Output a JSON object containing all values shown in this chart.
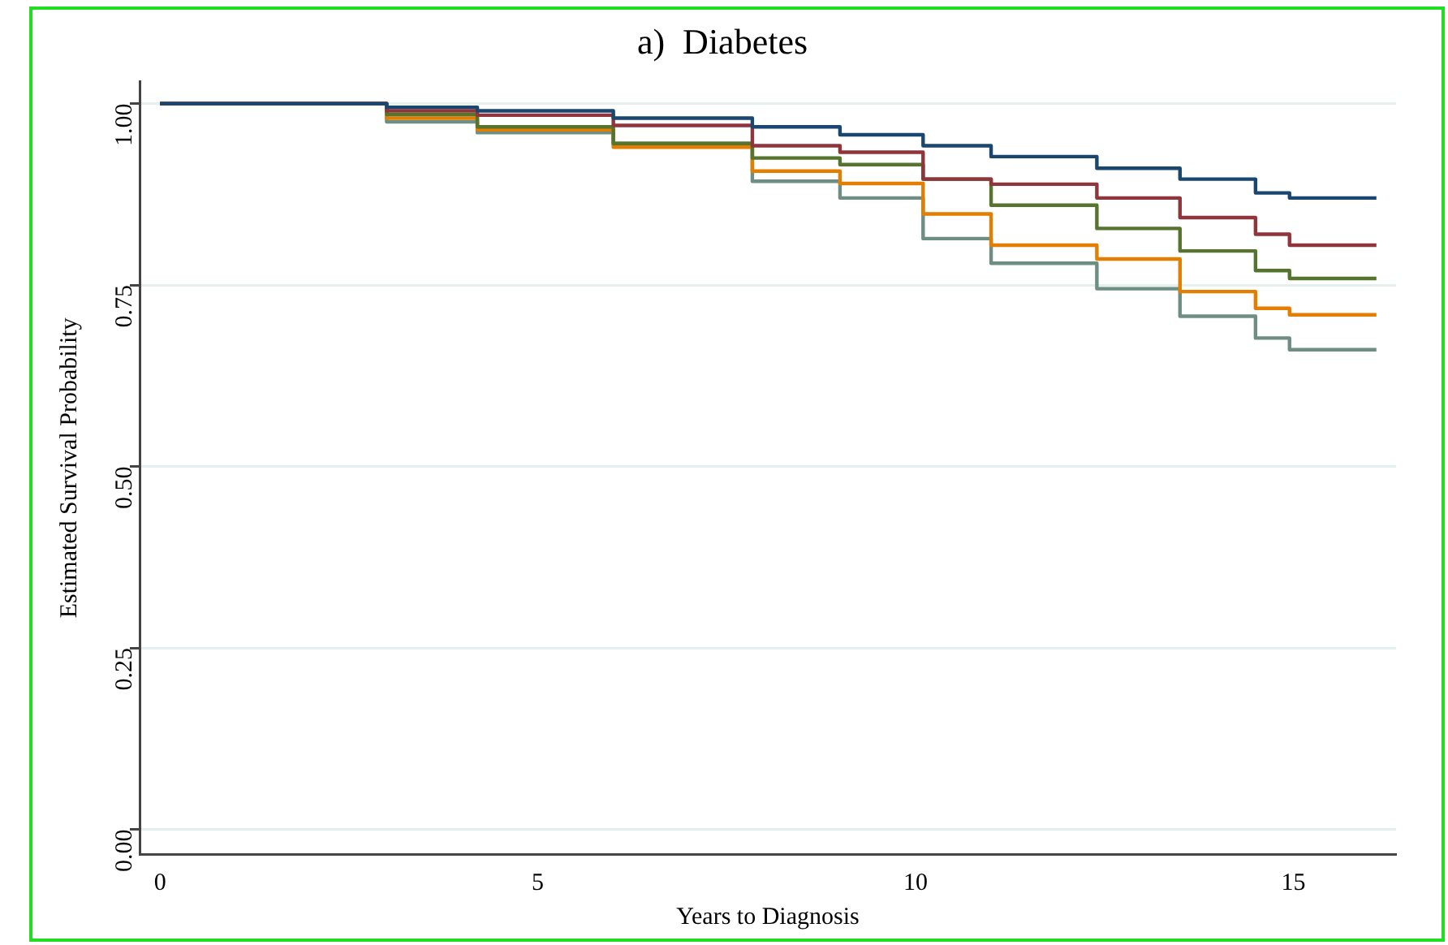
{
  "chart_data": {
    "type": "step",
    "title": "a)  Diabetes",
    "xlabel": "Years to Diagnosis",
    "ylabel": "Estimated Survival Probability",
    "x": [
      0,
      2.1,
      3,
      4.2,
      6,
      7.84,
      9,
      10.1,
      11,
      12.4,
      13.5,
      14.5,
      14.95,
      16.1
    ],
    "series": [
      {
        "color": "#1a476f",
        "values": [
          1,
          1,
          0.995,
          0.99,
          0.98,
          0.968,
          0.957,
          0.942,
          0.927,
          0.911,
          0.896,
          0.877,
          0.87,
          0.87
        ]
      },
      {
        "color": "#90353b",
        "values": [
          1,
          1,
          0.99,
          0.984,
          0.97,
          0.942,
          0.933,
          0.896,
          0.889,
          0.87,
          0.843,
          0.82,
          0.805,
          0.805
        ]
      },
      {
        "color": "#55752f",
        "values": [
          1,
          1,
          0.985,
          0.968,
          0.945,
          0.925,
          0.916,
          0.896,
          0.86,
          0.828,
          0.797,
          0.77,
          0.759,
          0.759
        ]
      },
      {
        "color": "#e37e00",
        "values": [
          1,
          1,
          0.98,
          0.964,
          0.94,
          0.907,
          0.89,
          0.848,
          0.805,
          0.786,
          0.741,
          0.718,
          0.709,
          0.709
        ]
      },
      {
        "color": "#6e8e84",
        "values": [
          1,
          1,
          0.975,
          0.96,
          0.945,
          0.893,
          0.87,
          0.814,
          0.78,
          0.745,
          0.707,
          0.677,
          0.661,
          0.661
        ]
      }
    ],
    "xlim": [
      -0.27,
      16.36
    ],
    "ylim": [
      -0.034,
      1.03
    ],
    "xticks": [
      0,
      5,
      10,
      15
    ],
    "yticks": [
      {
        "value": 0,
        "label": "0.00"
      },
      {
        "value": 0.25,
        "label": "0.25"
      },
      {
        "value": 0.5,
        "label": "0.50"
      },
      {
        "value": 0.75,
        "label": "0.75"
      },
      {
        "value": 1,
        "label": "1.00"
      }
    ],
    "grid": "y",
    "legend": false
  }
}
